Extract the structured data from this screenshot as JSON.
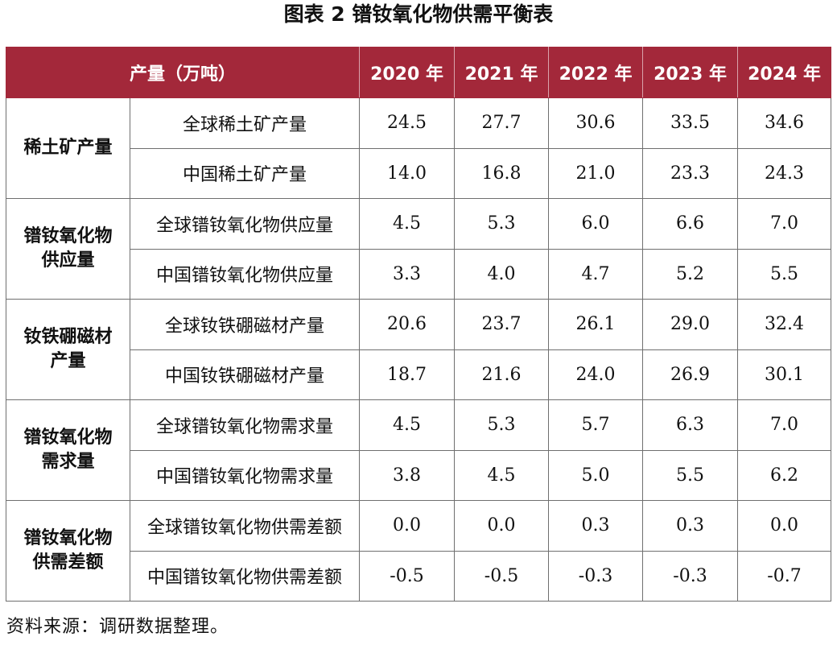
{
  "title": "图表 2 镨钕氧化物供需平衡表",
  "table": {
    "header_label": "产量（万吨）",
    "years": [
      "2020 年",
      "2021 年",
      "2022 年",
      "2023 年",
      "2024 年"
    ],
    "groups": [
      {
        "name": "稀土矿产量",
        "rows": [
          {
            "metric": "全球稀土矿产量",
            "values": [
              "24.5",
              "27.7",
              "30.6",
              "33.5",
              "34.6"
            ]
          },
          {
            "metric": "中国稀土矿产量",
            "values": [
              "14.0",
              "16.8",
              "21.0",
              "23.3",
              "24.3"
            ]
          }
        ]
      },
      {
        "name": "镨钕氧化物供应量",
        "rows": [
          {
            "metric": "全球镨钕氧化物供应量",
            "values": [
              "4.5",
              "5.3",
              "6.0",
              "6.6",
              "7.0"
            ]
          },
          {
            "metric": "中国镨钕氧化物供应量",
            "values": [
              "3.3",
              "4.0",
              "4.7",
              "5.2",
              "5.5"
            ]
          }
        ]
      },
      {
        "name": "钕铁硼磁材产量",
        "rows": [
          {
            "metric": "全球钕铁硼磁材产量",
            "values": [
              "20.6",
              "23.7",
              "26.1",
              "29.0",
              "32.4"
            ]
          },
          {
            "metric": "中国钕铁硼磁材产量",
            "values": [
              "18.7",
              "21.6",
              "24.0",
              "26.9",
              "30.1"
            ]
          }
        ]
      },
      {
        "name": "镨钕氧化物需求量",
        "rows": [
          {
            "metric": "全球镨钕氧化物需求量",
            "values": [
              "4.5",
              "5.3",
              "5.7",
              "6.3",
              "7.0"
            ]
          },
          {
            "metric": "中国镨钕氧化物需求量",
            "values": [
              "3.8",
              "4.5",
              "5.0",
              "5.5",
              "6.2"
            ]
          }
        ]
      },
      {
        "name": "镨钕氧化物供需差额",
        "rows": [
          {
            "metric": "全球镨钕氧化物供需差额",
            "values": [
              "0.0",
              "0.0",
              "0.3",
              "0.3",
              "0.0"
            ]
          },
          {
            "metric": "中国镨钕氧化物供需差额",
            "values": [
              "-0.5",
              "-0.5",
              "-0.3",
              "-0.3",
              "-0.7"
            ]
          }
        ]
      }
    ]
  },
  "source": "资料来源：调研数据整理。",
  "colors": {
    "header_background": "#a3283a",
    "header_text": "#ffffff",
    "border": "#6f6f6f"
  }
}
